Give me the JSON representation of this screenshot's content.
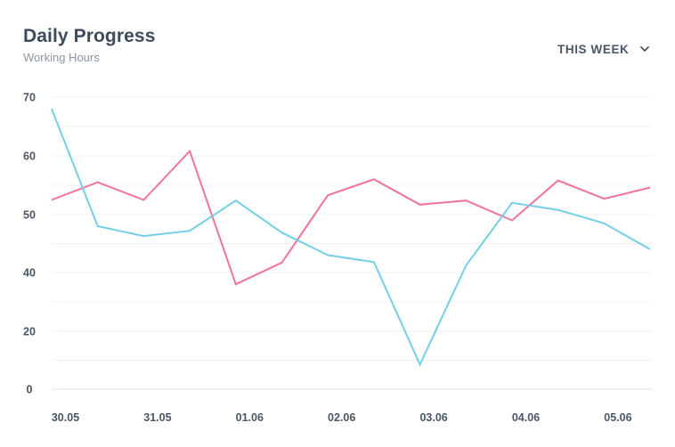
{
  "header": {
    "title": "Daily Progress",
    "subtitle": "Working Hours",
    "range_label": "THIS WEEK",
    "range_icon": "chevron-down-icon"
  },
  "colors": {
    "series_pink": "#f0739a",
    "series_blue": "#73cfe6",
    "grid": "#eef1f4",
    "axis": "#dde2e7",
    "text": "#4a5666"
  },
  "chart_data": {
    "type": "line",
    "x": [
      "30.05",
      "",
      "31.05",
      "",
      "01.06",
      "",
      "02.06",
      "",
      "03.06",
      "",
      "04.06",
      "",
      "05.06",
      ""
    ],
    "xlabels": [
      "30.05",
      "31.05",
      "01.06",
      "02.06",
      "03.06",
      "04.06",
      "05.06"
    ],
    "yticks": [
      0,
      20,
      40,
      50,
      60,
      70
    ],
    "ylim": [
      0,
      70
    ],
    "grid": true,
    "legend": "none",
    "series": [
      {
        "color": "#f0739a",
        "values": [
          52.5,
          55.5,
          52.5,
          60.8,
          36.0,
          41.7,
          53.3,
          56.0,
          51.7,
          52.4,
          49.0,
          55.8,
          52.7,
          54.6
        ]
      },
      {
        "color": "#73cfe6",
        "values": [
          68.0,
          48.0,
          46.3,
          47.2,
          52.4,
          46.9,
          43.0,
          41.8,
          8.5,
          41.2,
          52.0,
          50.8,
          48.5,
          44.0
        ]
      }
    ]
  }
}
